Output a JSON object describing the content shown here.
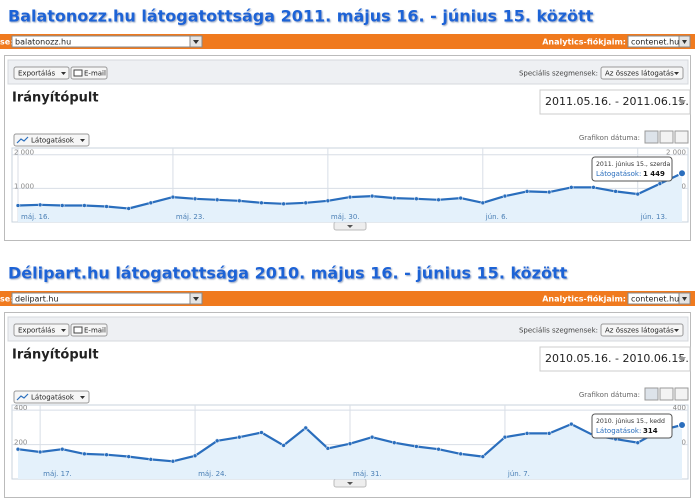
{
  "panels": [
    {
      "title": "Balatonozz.hu látogatottsága 2011. május 16. - június 15. között",
      "bar_label": "se:",
      "site": "balatonozz.hu",
      "accounts_label": "Analytics-fiókjaim:",
      "account": "contenet.hu",
      "export": "Exportálás",
      "email": "E-mail",
      "segments_label": "Speciális szegmensek:",
      "segment": "Az összes látogatás",
      "heading": "Irányítópult",
      "date_range": "2011.05.16. - 2011.06.15.",
      "metric": "Látogatások",
      "graph_label": "Grafikon dátuma:"
    },
    {
      "title": "Délipart.hu látogatottsága 2010. május 16. - június 15. között",
      "bar_label": "se:",
      "site": "delipart.hu",
      "accounts_label": "Analytics-fiókjaim:",
      "account": "contenet.hu",
      "export": "Exportálás",
      "email": "E-mail",
      "segments_label": "Speciális szegmensek:",
      "segment": "Az összes látogatás",
      "heading": "Irányítópult",
      "date_range": "2010.05.16. - 2010.06.15.",
      "metric": "Látogatások",
      "graph_label": "Grafikon dátuma:"
    }
  ],
  "chart_data": [
    {
      "type": "area-line",
      "color": "#2a6ebd",
      "fill": "#e4f1fb",
      "categories": [
        "máj. 16.",
        null,
        null,
        null,
        null,
        null,
        null,
        "máj. 23.",
        null,
        null,
        null,
        null,
        null,
        null,
        "máj. 30.",
        null,
        null,
        null,
        null,
        null,
        null,
        "jún. 6.",
        null,
        null,
        null,
        null,
        null,
        null,
        "jún. 13.",
        null,
        null
      ],
      "values": [
        490,
        510,
        490,
        490,
        460,
        400,
        570,
        740,
        690,
        660,
        630,
        570,
        540,
        570,
        630,
        740,
        770,
        710,
        690,
        660,
        710,
        570,
        770,
        910,
        890,
        1030,
        1030,
        910,
        830,
        1140,
        1449
      ],
      "value_labels": [
        null,
        null,
        null,
        null,
        null,
        null,
        null,
        null,
        null,
        null,
        null,
        null,
        null,
        null,
        null,
        null,
        null,
        null,
        null,
        null,
        null,
        null,
        null,
        null,
        null,
        null,
        null,
        null,
        null,
        null,
        "1 449"
      ],
      "tooltip_date": "2011. június 15., szerda",
      "tooltip_metric": "Látogatások:",
      "ylim": [
        0,
        2200
      ],
      "yticks": [
        {
          "value": 1000,
          "label": "1 000"
        },
        {
          "value": 2000,
          "label": "2 000"
        }
      ],
      "grid": true
    },
    {
      "type": "area-line",
      "color": "#2a6ebd",
      "fill": "#e4f1fb",
      "categories": [
        null,
        "máj. 17.",
        null,
        null,
        null,
        null,
        null,
        null,
        "máj. 24.",
        null,
        null,
        null,
        null,
        null,
        null,
        "máj. 31.",
        null,
        null,
        null,
        null,
        null,
        null,
        "jún. 7.",
        null,
        null,
        null,
        null,
        null,
        null,
        null,
        null
      ],
      "values": [
        173,
        157,
        173,
        146,
        141,
        130,
        114,
        103,
        135,
        222,
        243,
        270,
        195,
        297,
        178,
        205,
        243,
        211,
        189,
        173,
        146,
        130,
        243,
        265,
        265,
        319,
        254,
        232,
        211,
        281,
        314
      ],
      "value_labels": [
        null,
        null,
        null,
        null,
        null,
        null,
        null,
        null,
        null,
        null,
        null,
        null,
        null,
        null,
        null,
        null,
        null,
        null,
        null,
        null,
        null,
        null,
        null,
        null,
        null,
        null,
        null,
        null,
        null,
        null,
        "314"
      ],
      "tooltip_date": "2010. június 15., kedd",
      "tooltip_metric": "Látogatások:",
      "ylim": [
        0,
        430
      ],
      "yticks": [
        200,
        400
      ],
      "grid": true
    }
  ]
}
